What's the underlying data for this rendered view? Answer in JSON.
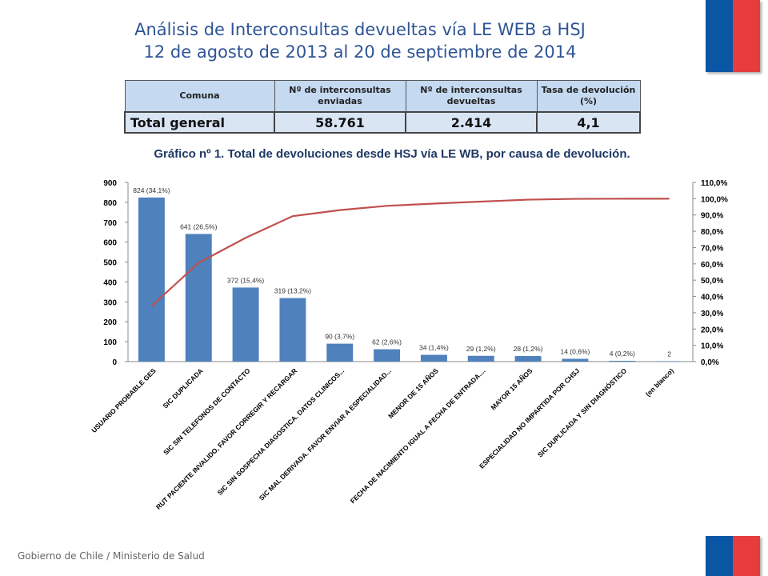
{
  "colors": {
    "title": "#2f5496",
    "header_fill": "#c5d9f1",
    "bar": "#4f81bd",
    "line": "#c0504d",
    "caption": "#1f3864",
    "flag_blue": "#0a56a5",
    "flag_red": "#e63c3c"
  },
  "header": {
    "title_line1": "Análisis de Interconsultas devueltas vía LE WEB a HSJ",
    "title_line2": "12 de agosto de 2013 al 20 de septiembre de 2014"
  },
  "summary_table": {
    "headers": [
      "Comuna",
      "Nº de interconsultas enviadas",
      "Nº de interconsultas devueltas",
      "Tasa de devolución (%)"
    ],
    "row": [
      "Total general",
      "58.761",
      "2.414",
      "4,1"
    ]
  },
  "chart_caption": "Gráfico nº 1. Total de devoluciones desde HSJ vía LE WB, por causa de devolución.",
  "chart_data": {
    "type": "bar",
    "categories": [
      "USUARIO PROBABLE GES",
      "SIC DUPLICADA",
      "SIC SIN TELEFONOS DE CONTACTO",
      "RUT PACIENTE INVALIDO, FAVOR CORREGIR Y RECARGAR",
      "SIC SIN SOSPECHA DIAGOSTICA. DATOS CLINICOS...",
      "SIC MAL DERIVADA. FAVOR ENVIAR A ESPECIALIDAD...",
      "MENOR DE 15 AÑOS",
      "FECHA DE NACIMIENTO IGUAL A FECHA DE ENTRADA....",
      "MAYOR 15 AÑOS",
      "ESPECIALIDAD NO IMPARTIDA POR CHSJ",
      "SIC DUPLICADA Y SIN DIAGNÓSTICO",
      "(en blanco)"
    ],
    "series": [
      {
        "values": [
          824,
          641,
          372,
          319,
          90,
          62,
          34,
          29,
          28,
          14,
          4,
          2
        ],
        "labels": [
          "824 (34,1%)",
          "641 (26,5%)",
          "372 (15,4%)",
          "319 (13,2%)",
          "90 (3,7%)",
          "62 (2,6%)",
          "34 (1,4%)",
          "29 (1,2%)",
          "28 (1,2%)",
          "14 (0,6%)",
          "4 (0,2%)",
          "2"
        ]
      },
      {
        "type": "line",
        "axis": "secondary",
        "values": [
          34.1,
          60.6,
          76.0,
          89.3,
          93.0,
          95.6,
          97.0,
          98.2,
          99.4,
          99.9,
          100.0,
          100.0
        ]
      }
    ],
    "ylim": [
      0,
      900
    ],
    "yticks": [
      "0",
      "100",
      "200",
      "300",
      "400",
      "500",
      "600",
      "700",
      "800",
      "900"
    ],
    "y2lim": [
      0,
      110
    ],
    "y2ticks": [
      "0,0%",
      "10,0%",
      "20,0%",
      "30,0%",
      "40,0%",
      "50,0%",
      "60,0%",
      "70,0%",
      "80,0%",
      "90,0%",
      "100,0%",
      "110,0%"
    ],
    "grid": false
  },
  "footer": "Gobierno de Chile / Ministerio de Salud"
}
